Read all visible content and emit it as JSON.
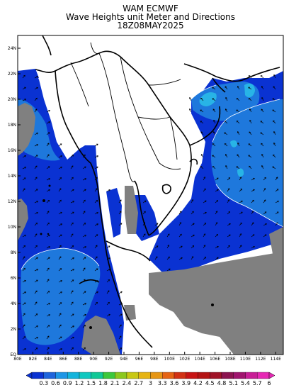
{
  "title": {
    "line1": "WAM ECMWF",
    "line2": "Wave Heights unit Meter and Directions",
    "line3": "18Z08MAY2025"
  },
  "map": {
    "lon_ticks": [
      "80E",
      "82E",
      "84E",
      "86E",
      "88E",
      "90E",
      "92E",
      "94E",
      "96E",
      "98E",
      "100E",
      "102E",
      "104E",
      "106E",
      "108E",
      "110E",
      "112E",
      "114E"
    ],
    "lat_ticks": [
      "EQ",
      "2N",
      "4N",
      "6N",
      "8N",
      "10N",
      "12N",
      "14N",
      "16N",
      "18N",
      "20N",
      "22N",
      "24N"
    ],
    "lon_range": [
      80,
      115
    ],
    "lat_range": [
      0,
      25
    ]
  },
  "colors": {
    "land": "#808080",
    "no_data": "#ffffff",
    "wave_low": "#0a32d2",
    "wave_mid": "#1e78dc",
    "wave_high": "#28b4e6",
    "arrow": "#000000"
  },
  "colorbar": {
    "labels": [
      "0.3",
      "0.6",
      "0.9",
      "1.2",
      "1.5",
      "1.8",
      "2.1",
      "2.4",
      "2.7",
      "3",
      "3.3",
      "3.6",
      "3.9",
      "4.2",
      "4.5",
      "4.8",
      "5.1",
      "5.4",
      "5.7",
      "6"
    ],
    "colors": [
      "#0a32d2",
      "#1e64dc",
      "#1e96e6",
      "#14b4dc",
      "#10c8c0",
      "#10c896",
      "#3cc83c",
      "#8cc81e",
      "#c8c814",
      "#e6b414",
      "#e69614",
      "#e66414",
      "#d23214",
      "#c81414",
      "#b41414",
      "#a01428",
      "#8c1450",
      "#a0146e",
      "#c81e96",
      "#e628b4"
    ]
  }
}
